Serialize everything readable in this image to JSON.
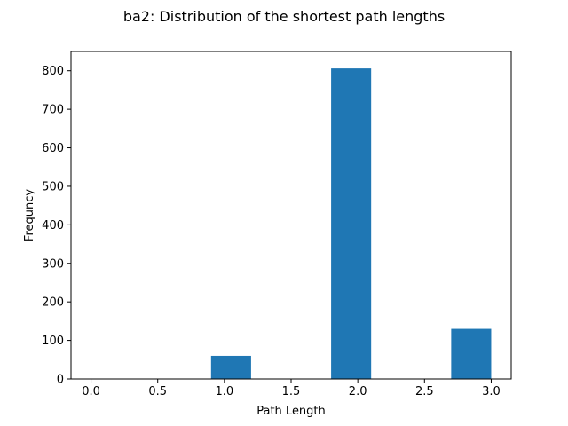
{
  "chart_data": {
    "type": "bar",
    "title": "ba2: Distribution of the shortest path lengths",
    "xlabel": "Path Length",
    "ylabel": "Frequncy",
    "xlim": [
      -0.15,
      3.15
    ],
    "ylim": [
      0,
      850
    ],
    "xticks": [
      0.0,
      0.5,
      1.0,
      1.5,
      2.0,
      2.5,
      3.0
    ],
    "xtick_labels": [
      "0.0",
      "0.5",
      "1.0",
      "1.5",
      "2.0",
      "2.5",
      "3.0"
    ],
    "yticks": [
      0,
      100,
      200,
      300,
      400,
      500,
      600,
      700,
      800
    ],
    "ytick_labels": [
      "0",
      "100",
      "200",
      "300",
      "400",
      "500",
      "600",
      "700",
      "800"
    ],
    "bins": [
      {
        "start": 0.9,
        "end": 1.2,
        "value": 60
      },
      {
        "start": 1.8,
        "end": 2.1,
        "value": 806
      },
      {
        "start": 2.7,
        "end": 3.0,
        "value": 130
      }
    ],
    "bar_color": "#1f77b4",
    "grid": false,
    "legend": "none"
  }
}
